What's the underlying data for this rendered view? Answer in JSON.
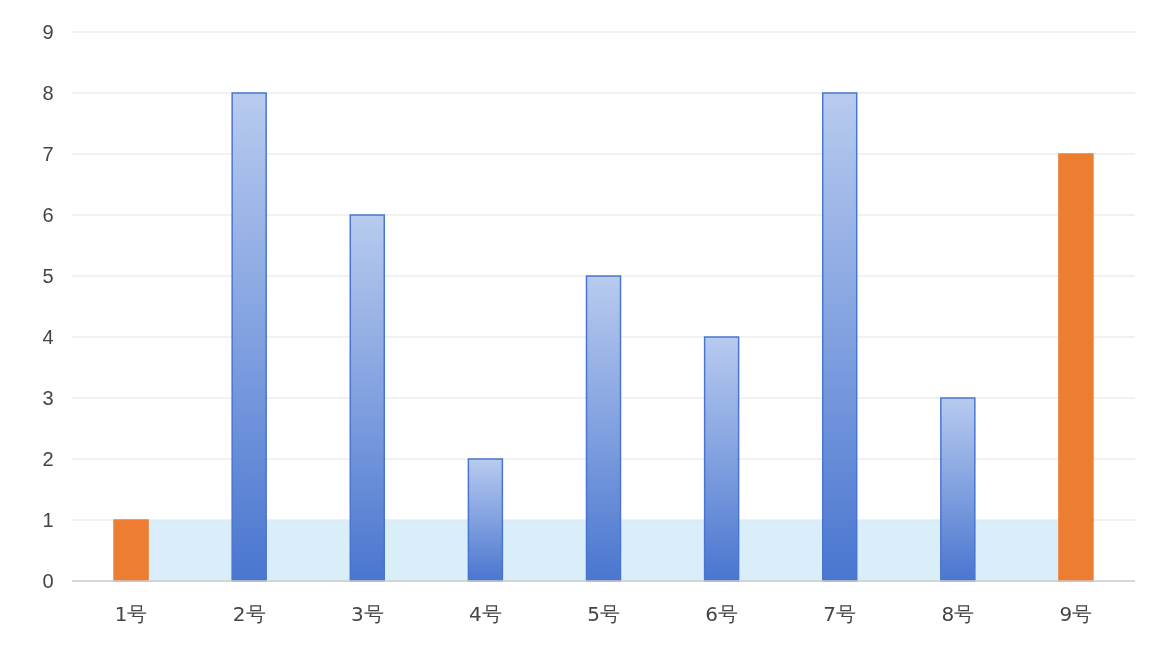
{
  "chart_data": {
    "type": "bar",
    "categories": [
      "1号",
      "2号",
      "3号",
      "4号",
      "5号",
      "6号",
      "7号",
      "8号",
      "9号"
    ],
    "values": [
      1,
      8,
      6,
      2,
      5,
      4,
      8,
      3,
      7
    ],
    "colors": [
      "#ed7d31",
      "#4a76d0",
      "#4a76d0",
      "#4a76d0",
      "#4a76d0",
      "#4a76d0",
      "#4a76d0",
      "#4a76d0",
      "#ed7d31"
    ],
    "ylim": [
      0,
      9
    ],
    "yticks": [
      0,
      1,
      2,
      3,
      4,
      5,
      6,
      7,
      8,
      9
    ],
    "grid": "y",
    "bands": [
      {
        "axis": "y",
        "from": 0,
        "to": 1,
        "color": "#cfeaf8"
      }
    ]
  }
}
